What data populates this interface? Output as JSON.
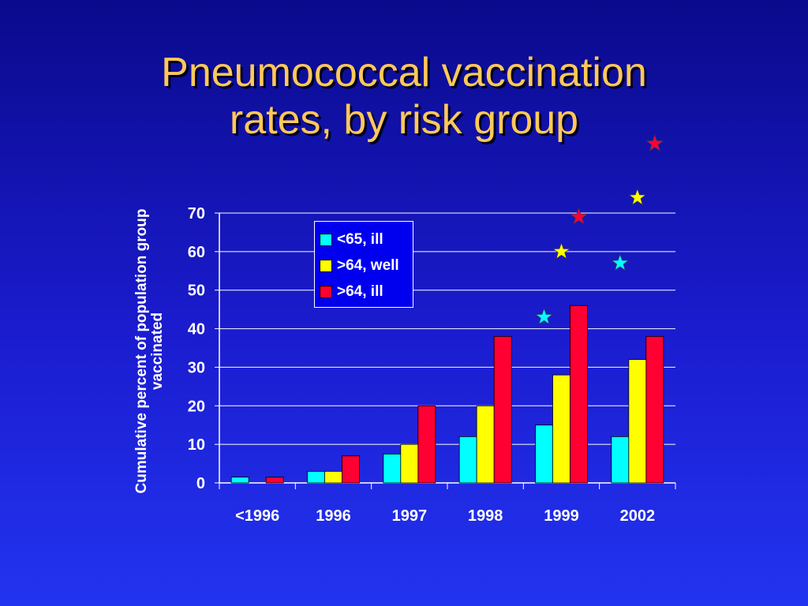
{
  "title": {
    "line1": "Pneumococcal vaccination",
    "line2": "rates, by risk group"
  },
  "colors": {
    "title": "#ffc85a",
    "gridline": "#ffffff",
    "axis_text": "#ffffff"
  },
  "chart_data": {
    "type": "bar",
    "title": "Pneumococcal vaccination rates, by risk group",
    "xlabel": "",
    "ylabel": "Cumulative percent of population group vaccinated",
    "categories": [
      "<1996",
      "1996",
      "1997",
      "1998",
      "1999",
      "2002"
    ],
    "series": [
      {
        "name": "<65, ill",
        "color": "#00ffff",
        "values": [
          1.5,
          3,
          7.5,
          12,
          15,
          12
        ]
      },
      {
        "name": ">64, well",
        "color": "#ffff00",
        "values": [
          0,
          3,
          10,
          20,
          28,
          32
        ]
      },
      {
        "name": ">64, ill",
        "color": "#ff0033",
        "values": [
          1.5,
          7,
          20,
          38,
          46,
          38
        ]
      }
    ],
    "ylim": [
      0,
      70
    ],
    "yticks": [
      0,
      10,
      20,
      30,
      40,
      50,
      60,
      70
    ],
    "grid": true,
    "legend": "top-center",
    "annotations": [
      {
        "type": "star",
        "series": "<65, ill",
        "x": "1999",
        "y": 43
      },
      {
        "type": "star",
        "series": ">64, well",
        "x": "1999",
        "y": 60
      },
      {
        "type": "star",
        "series": ">64, ill",
        "x": "1999",
        "y": 69
      },
      {
        "type": "star",
        "series": "<65, ill",
        "x": "2002",
        "y": 57
      },
      {
        "type": "star",
        "series": ">64, well",
        "x": "2002",
        "y": 74
      },
      {
        "type": "star",
        "series": ">64, ill",
        "x": "2002",
        "y": 88
      }
    ]
  }
}
